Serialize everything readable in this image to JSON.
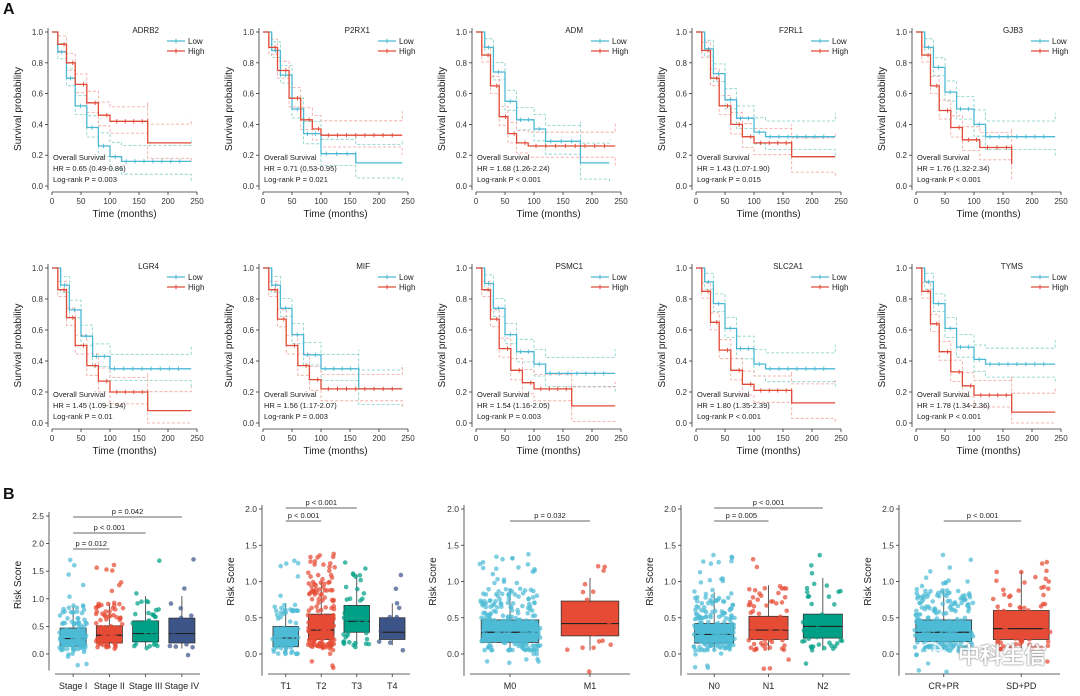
{
  "panels": {
    "a": "A",
    "b": "B"
  },
  "colors": {
    "low": "#4bb8d4",
    "high": "#e04a36",
    "ci_low": "#7ed0c6",
    "ci_high": "#f0a29a",
    "stage": "#29b4d0",
    "t": "#e64b35",
    "m": "#3fa788",
    "n": "#3c5488"
  },
  "watermark": "中科生信",
  "km": {
    "xlabel": "Time (months)",
    "ylabel": "Survival probability",
    "legend": [
      "Low",
      "High"
    ],
    "survival_label": "Overall Survival",
    "xticks": [
      0,
      50,
      100,
      150,
      200,
      250
    ],
    "yticks": [
      "0.0",
      "0.2",
      "0.4",
      "0.6",
      "0.8",
      "1.0"
    ],
    "plots": [
      {
        "gene": "ADRB2",
        "hr": "HR = 0.65 (0.49-0.86)",
        "p": "Log-rank P = 0.003",
        "low": [
          [
            0,
            1
          ],
          [
            10,
            0.87
          ],
          [
            25,
            0.7
          ],
          [
            40,
            0.52
          ],
          [
            60,
            0.38
          ],
          [
            80,
            0.26
          ],
          [
            100,
            0.19
          ],
          [
            120,
            0.16
          ],
          [
            240,
            0.16
          ]
        ],
        "high": [
          [
            0,
            1
          ],
          [
            10,
            0.92
          ],
          [
            25,
            0.8
          ],
          [
            40,
            0.66
          ],
          [
            60,
            0.54
          ],
          [
            80,
            0.46
          ],
          [
            100,
            0.42
          ],
          [
            165,
            0.42
          ],
          [
            165,
            0.28
          ],
          [
            240,
            0.28
          ]
        ]
      },
      {
        "gene": "P2RX1",
        "hr": "HR = 0.71 (0.53-0.95)",
        "p": "Log-rank P = 0.021",
        "low": [
          [
            0,
            1
          ],
          [
            15,
            0.88
          ],
          [
            30,
            0.72
          ],
          [
            50,
            0.5
          ],
          [
            70,
            0.34
          ],
          [
            100,
            0.21
          ],
          [
            160,
            0.21
          ],
          [
            160,
            0.15
          ],
          [
            240,
            0.15
          ]
        ],
        "high": [
          [
            0,
            1
          ],
          [
            10,
            0.9
          ],
          [
            25,
            0.75
          ],
          [
            45,
            0.57
          ],
          [
            65,
            0.43
          ],
          [
            85,
            0.37
          ],
          [
            100,
            0.33
          ],
          [
            240,
            0.33
          ]
        ]
      },
      {
        "gene": "ADM",
        "hr": "HR = 1.68 (1.26-2.24)",
        "p": "Log-rank P < 0.001",
        "low": [
          [
            0,
            1
          ],
          [
            15,
            0.9
          ],
          [
            30,
            0.74
          ],
          [
            50,
            0.55
          ],
          [
            70,
            0.43
          ],
          [
            100,
            0.37
          ],
          [
            120,
            0.29
          ],
          [
            180,
            0.29
          ],
          [
            180,
            0.15
          ],
          [
            230,
            0.15
          ]
        ],
        "high": [
          [
            0,
            1
          ],
          [
            10,
            0.85
          ],
          [
            25,
            0.65
          ],
          [
            40,
            0.45
          ],
          [
            55,
            0.34
          ],
          [
            70,
            0.28
          ],
          [
            90,
            0.26
          ],
          [
            240,
            0.26
          ]
        ]
      },
      {
        "gene": "F2RL1",
        "hr": "HR = 1.43 (1.07-1.90)",
        "p": "Log-rank P = 0.015",
        "low": [
          [
            0,
            1
          ],
          [
            15,
            0.89
          ],
          [
            30,
            0.73
          ],
          [
            50,
            0.56
          ],
          [
            70,
            0.44
          ],
          [
            100,
            0.35
          ],
          [
            120,
            0.32
          ],
          [
            240,
            0.32
          ]
        ],
        "high": [
          [
            0,
            1
          ],
          [
            10,
            0.88
          ],
          [
            25,
            0.7
          ],
          [
            40,
            0.52
          ],
          [
            60,
            0.4
          ],
          [
            80,
            0.32
          ],
          [
            100,
            0.28
          ],
          [
            165,
            0.28
          ],
          [
            165,
            0.19
          ],
          [
            240,
            0.19
          ]
        ]
      },
      {
        "gene": "GJB3",
        "hr": "HR = 1.76 (1.32-2.34)",
        "p": "Log-rank P < 0.001",
        "low": [
          [
            0,
            1
          ],
          [
            15,
            0.9
          ],
          [
            30,
            0.77
          ],
          [
            50,
            0.61
          ],
          [
            70,
            0.5
          ],
          [
            100,
            0.4
          ],
          [
            120,
            0.32
          ],
          [
            240,
            0.32
          ]
        ],
        "high": [
          [
            0,
            1
          ],
          [
            10,
            0.85
          ],
          [
            25,
            0.65
          ],
          [
            40,
            0.49
          ],
          [
            60,
            0.38
          ],
          [
            80,
            0.3
          ],
          [
            110,
            0.25
          ],
          [
            165,
            0.25
          ],
          [
            165,
            0.14
          ]
        ]
      },
      {
        "gene": "LGR4",
        "hr": "HR = 1.45 (1.09-1.94)",
        "p": "Log-rank P = 0.01",
        "low": [
          [
            0,
            1
          ],
          [
            15,
            0.89
          ],
          [
            30,
            0.73
          ],
          [
            50,
            0.56
          ],
          [
            70,
            0.43
          ],
          [
            100,
            0.35
          ],
          [
            240,
            0.35
          ]
        ],
        "high": [
          [
            0,
            1
          ],
          [
            10,
            0.86
          ],
          [
            25,
            0.68
          ],
          [
            40,
            0.5
          ],
          [
            60,
            0.37
          ],
          [
            80,
            0.27
          ],
          [
            100,
            0.2
          ],
          [
            165,
            0.2
          ],
          [
            165,
            0.08
          ],
          [
            240,
            0.08
          ]
        ]
      },
      {
        "gene": "MIF",
        "hr": "HR = 1.56 (1.17-2.07)",
        "p": "Log-rank P = 0.003",
        "low": [
          [
            0,
            1
          ],
          [
            15,
            0.89
          ],
          [
            30,
            0.74
          ],
          [
            50,
            0.57
          ],
          [
            70,
            0.44
          ],
          [
            100,
            0.35
          ],
          [
            165,
            0.35
          ],
          [
            165,
            0.22
          ],
          [
            240,
            0.22
          ]
        ],
        "high": [
          [
            0,
            1
          ],
          [
            10,
            0.86
          ],
          [
            25,
            0.67
          ],
          [
            40,
            0.5
          ],
          [
            60,
            0.37
          ],
          [
            80,
            0.28
          ],
          [
            100,
            0.22
          ],
          [
            240,
            0.22
          ]
        ]
      },
      {
        "gene": "PSMC1",
        "hr": "HR = 1.54 (1.16-2.05)",
        "p": "Log-rank P = 0.003",
        "low": [
          [
            0,
            1
          ],
          [
            15,
            0.9
          ],
          [
            30,
            0.74
          ],
          [
            50,
            0.57
          ],
          [
            70,
            0.46
          ],
          [
            100,
            0.38
          ],
          [
            120,
            0.32
          ],
          [
            240,
            0.32
          ]
        ],
        "high": [
          [
            0,
            1
          ],
          [
            10,
            0.86
          ],
          [
            25,
            0.67
          ],
          [
            40,
            0.48
          ],
          [
            60,
            0.34
          ],
          [
            80,
            0.26
          ],
          [
            100,
            0.22
          ],
          [
            165,
            0.22
          ],
          [
            165,
            0.11
          ],
          [
            240,
            0.11
          ]
        ]
      },
      {
        "gene": "SLC2A1",
        "hr": "HR = 1.80 (1.35-2.39)",
        "p": "Log-rank P < 0.001",
        "low": [
          [
            0,
            1
          ],
          [
            15,
            0.91
          ],
          [
            30,
            0.77
          ],
          [
            50,
            0.61
          ],
          [
            70,
            0.48
          ],
          [
            100,
            0.38
          ],
          [
            120,
            0.35
          ],
          [
            240,
            0.35
          ]
        ],
        "high": [
          [
            0,
            1
          ],
          [
            10,
            0.85
          ],
          [
            25,
            0.65
          ],
          [
            40,
            0.47
          ],
          [
            60,
            0.34
          ],
          [
            80,
            0.25
          ],
          [
            100,
            0.21
          ],
          [
            165,
            0.21
          ],
          [
            165,
            0.13
          ],
          [
            240,
            0.13
          ]
        ]
      },
      {
        "gene": "TYMS",
        "hr": "HR = 1.78 (1.34-2.36)",
        "p": "Log-rank P < 0.001",
        "low": [
          [
            0,
            1
          ],
          [
            15,
            0.91
          ],
          [
            30,
            0.77
          ],
          [
            50,
            0.61
          ],
          [
            70,
            0.49
          ],
          [
            100,
            0.41
          ],
          [
            120,
            0.38
          ],
          [
            240,
            0.38
          ]
        ],
        "high": [
          [
            0,
            1
          ],
          [
            10,
            0.85
          ],
          [
            25,
            0.64
          ],
          [
            40,
            0.46
          ],
          [
            60,
            0.33
          ],
          [
            80,
            0.24
          ],
          [
            100,
            0.18
          ],
          [
            165,
            0.18
          ],
          [
            165,
            0.07
          ],
          [
            240,
            0.07
          ]
        ]
      }
    ]
  },
  "box": {
    "ylabel": "Risk Score",
    "plots": [
      {
        "ymax": 2.5,
        "yticks": [
          "0.0",
          "0.5",
          "1.0",
          "1.5",
          "2.0",
          "2.5"
        ],
        "categories": [
          "Stage I",
          "Stage II",
          "Stage III",
          "Stage IV"
        ],
        "colors": [
          "#4dbbd5",
          "#e64b35",
          "#00a087",
          "#3c5488"
        ],
        "stats": [
          [
            0.08,
            0.14,
            0.28,
            0.47,
            0.88
          ],
          [
            0.12,
            0.2,
            0.34,
            0.51,
            0.92
          ],
          [
            0.12,
            0.22,
            0.37,
            0.6,
            1.05
          ],
          [
            0.1,
            0.2,
            0.37,
            0.65,
            1.05
          ]
        ],
        "counts": [
          110,
          85,
          40,
          18
        ],
        "sig": [
          {
            "from": 0,
            "to": 1,
            "label": "p = 0.012"
          },
          {
            "from": 0,
            "to": 2,
            "label": "p < 0.001"
          },
          {
            "from": 0,
            "to": 3,
            "label": "p = 0.042"
          }
        ]
      },
      {
        "ymax": 2.0,
        "yticks": [
          "0.0",
          "0.5",
          "1.0",
          "1.5",
          "2.0"
        ],
        "categories": [
          "T1",
          "T2",
          "T3",
          "T4"
        ],
        "colors": [
          "#4dbbd5",
          "#e64b35",
          "#00a087",
          "#3c5488"
        ],
        "stats": [
          [
            0.0,
            0.1,
            0.22,
            0.38,
            0.7
          ],
          [
            0.1,
            0.2,
            0.33,
            0.55,
            1.0
          ],
          [
            0.12,
            0.3,
            0.45,
            0.67,
            1.1
          ],
          [
            0.12,
            0.2,
            0.3,
            0.5,
            0.7
          ]
        ],
        "counts": [
          70,
          170,
          40,
          12
        ],
        "sig": [
          {
            "from": 0,
            "to": 1,
            "label": "p < 0.001"
          },
          {
            "from": 0,
            "to": 2,
            "label": "p < 0.001"
          }
        ]
      },
      {
        "ymax": 2.0,
        "yticks": [
          "0.0",
          "0.5",
          "1.0",
          "1.5",
          "2.0"
        ],
        "categories": [
          "M0",
          "M1"
        ],
        "colors": [
          "#4dbbd5",
          "#e64b35"
        ],
        "stats": [
          [
            0.05,
            0.16,
            0.3,
            0.47,
            0.9
          ],
          [
            0.05,
            0.25,
            0.42,
            0.73,
            1.05
          ]
        ],
        "counts": [
          240,
          22
        ],
        "sig": [
          {
            "from": 0,
            "to": 1,
            "label": "p = 0.032"
          }
        ]
      },
      {
        "ymax": 2.0,
        "yticks": [
          "0.0",
          "0.5",
          "1.0",
          "1.5",
          "2.0"
        ],
        "categories": [
          "N0",
          "N1",
          "N2"
        ],
        "colors": [
          "#4dbbd5",
          "#e64b35",
          "#00a087"
        ],
        "stats": [
          [
            0.05,
            0.15,
            0.27,
            0.42,
            0.85
          ],
          [
            0.05,
            0.2,
            0.33,
            0.52,
            0.95
          ],
          [
            0.05,
            0.22,
            0.38,
            0.55,
            1.05
          ]
        ],
        "counts": [
          170,
          70,
          40
        ],
        "sig": [
          {
            "from": 0,
            "to": 1,
            "label": "p = 0.005"
          },
          {
            "from": 0,
            "to": 2,
            "label": "p < 0.001"
          }
        ]
      },
      {
        "ymax": 2.0,
        "yticks": [
          "0.0",
          "0.5",
          "1.0",
          "1.5",
          "2.0"
        ],
        "categories": [
          "CR+PR",
          "SD+PD"
        ],
        "colors": [
          "#4dbbd5",
          "#e64b35"
        ],
        "stats": [
          [
            0.05,
            0.17,
            0.3,
            0.47,
            0.88
          ],
          [
            0.05,
            0.2,
            0.35,
            0.6,
            1.15
          ]
        ],
        "counts": [
          210,
          70
        ],
        "sig": [
          {
            "from": 0,
            "to": 1,
            "label": "p < 0.001"
          }
        ]
      }
    ]
  },
  "chart_data": [
    {
      "type": "line",
      "xlabel": "Time (months)",
      "ylabel": "Survival probability",
      "xlim": [
        0,
        250
      ],
      "ylim": [
        0,
        1
      ],
      "note": "10 Kaplan-Meier panels (see km.plots for series per gene: Low and High)"
    },
    {
      "type": "box",
      "ylabel": "Risk Score",
      "categories": [
        [
          "Stage I",
          "Stage II",
          "Stage III",
          "Stage IV"
        ],
        [
          "T1",
          "T2",
          "T3",
          "T4"
        ],
        [
          "M0",
          "M1"
        ],
        [
          "N0",
          "N1",
          "N2"
        ],
        [
          "CR+PR",
          "SD+PD"
        ]
      ]
    }
  ]
}
